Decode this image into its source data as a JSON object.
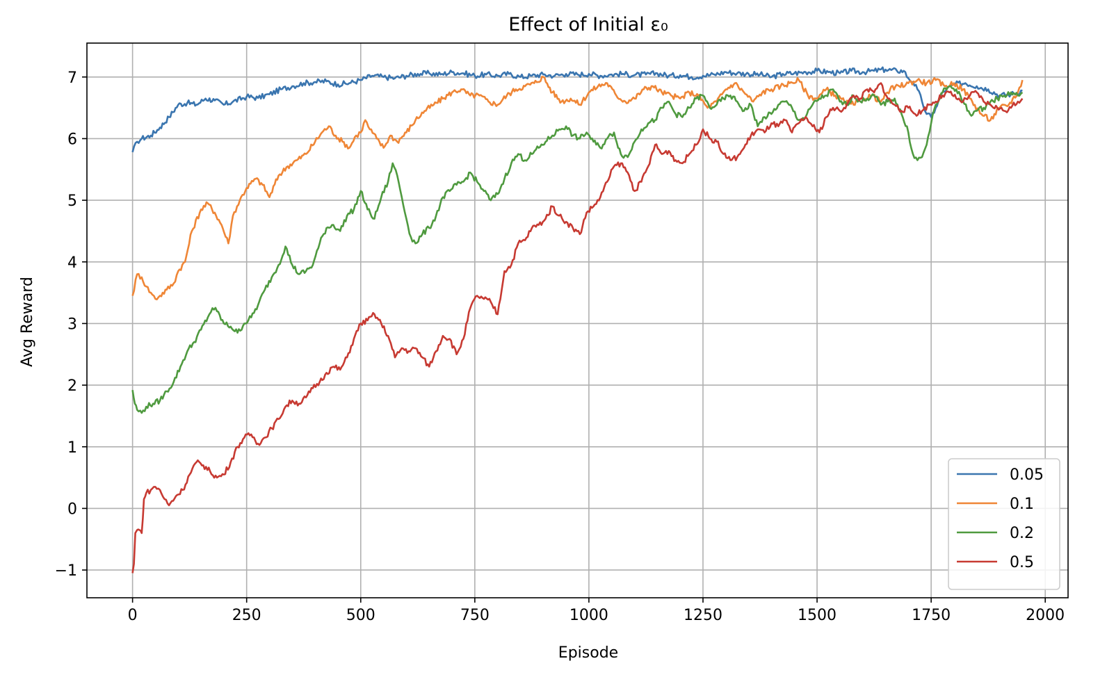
{
  "chart_data": {
    "type": "line",
    "title": "Effect of Initial ε₀",
    "xlabel": "Episode",
    "ylabel": "Avg Reward",
    "xlim": [
      -100,
      2050
    ],
    "ylim": [
      -1.45,
      7.55
    ],
    "xticks": [
      0,
      250,
      500,
      750,
      1000,
      1250,
      1500,
      1750,
      2000
    ],
    "xtick_labels": [
      "0",
      "250",
      "500",
      "750",
      "1000",
      "1250",
      "1500",
      "1750",
      "2000"
    ],
    "yticks": [
      -1,
      0,
      1,
      2,
      3,
      4,
      5,
      6,
      7
    ],
    "ytick_labels": [
      "−1",
      "0",
      "1",
      "2",
      "3",
      "4",
      "5",
      "6",
      "7"
    ],
    "grid": true,
    "legend_position": "lower-right",
    "series": [
      {
        "name": "0.05",
        "color": "#3a75af",
        "x": [
          0,
          10,
          20,
          40,
          60,
          80,
          100,
          120,
          140,
          160,
          180,
          200,
          220,
          250,
          275,
          300,
          325,
          350,
          375,
          400,
          425,
          450,
          475,
          500,
          525,
          550,
          575,
          600,
          625,
          650,
          675,
          700,
          725,
          750,
          775,
          800,
          825,
          850,
          875,
          900,
          925,
          950,
          975,
          1000,
          1025,
          1050,
          1075,
          1100,
          1125,
          1150,
          1175,
          1200,
          1225,
          1250,
          1275,
          1300,
          1325,
          1350,
          1375,
          1400,
          1425,
          1450,
          1475,
          1500,
          1525,
          1550,
          1575,
          1600,
          1625,
          1650,
          1675,
          1690,
          1700,
          1710,
          1720,
          1730,
          1740,
          1750,
          1760,
          1775,
          1800,
          1825,
          1850,
          1875,
          1900,
          1925,
          1950
        ],
        "values": [
          5.78,
          5.95,
          6.0,
          6.05,
          6.18,
          6.35,
          6.55,
          6.58,
          6.55,
          6.65,
          6.62,
          6.55,
          6.6,
          6.68,
          6.66,
          6.72,
          6.8,
          6.85,
          6.9,
          6.92,
          6.93,
          6.88,
          6.9,
          6.95,
          7.02,
          7.0,
          6.98,
          7.02,
          7.05,
          7.06,
          7.04,
          7.08,
          7.06,
          7.02,
          7.04,
          7.02,
          7.05,
          7.0,
          7.02,
          7.04,
          7.02,
          7.05,
          7.04,
          7.05,
          7.02,
          7.04,
          7.05,
          7.03,
          7.04,
          7.06,
          7.02,
          7.03,
          7.0,
          7.02,
          7.04,
          7.08,
          7.06,
          7.05,
          7.04,
          7.0,
          7.05,
          7.06,
          7.08,
          7.1,
          7.08,
          7.06,
          7.1,
          7.08,
          7.1,
          7.12,
          7.1,
          7.1,
          6.98,
          6.92,
          6.8,
          6.6,
          6.4,
          6.35,
          6.5,
          6.75,
          6.88,
          6.9,
          6.85,
          6.8,
          6.7,
          6.72,
          6.78
        ]
      },
      {
        "name": "0.1",
        "color": "#ef8636",
        "x": [
          0,
          10,
          20,
          30,
          40,
          50,
          60,
          75,
          90,
          100,
          115,
          130,
          150,
          165,
          180,
          195,
          210,
          220,
          235,
          250,
          270,
          285,
          300,
          320,
          340,
          360,
          380,
          400,
          415,
          430,
          445,
          460,
          475,
          490,
          500,
          510,
          520,
          535,
          550,
          565,
          580,
          600,
          620,
          640,
          660,
          680,
          700,
          720,
          740,
          760,
          780,
          800,
          820,
          840,
          860,
          880,
          900,
          920,
          940,
          960,
          980,
          1000,
          1020,
          1040,
          1060,
          1080,
          1100,
          1120,
          1140,
          1160,
          1180,
          1200,
          1220,
          1240,
          1260,
          1280,
          1300,
          1320,
          1340,
          1360,
          1380,
          1400,
          1420,
          1440,
          1460,
          1480,
          1500,
          1520,
          1540,
          1560,
          1580,
          1600,
          1620,
          1640,
          1660,
          1680,
          1700,
          1720,
          1740,
          1760,
          1780,
          1800,
          1820,
          1840,
          1860,
          1880,
          1900,
          1920,
          1940,
          1950
        ],
        "values": [
          3.45,
          3.8,
          3.75,
          3.6,
          3.5,
          3.4,
          3.45,
          3.55,
          3.65,
          3.85,
          4.0,
          4.5,
          4.85,
          4.95,
          4.8,
          4.6,
          4.3,
          4.75,
          5.0,
          5.2,
          5.35,
          5.25,
          5.05,
          5.4,
          5.55,
          5.65,
          5.75,
          5.95,
          6.1,
          6.2,
          6.05,
          5.95,
          5.85,
          6.05,
          6.1,
          6.3,
          6.15,
          6.0,
          5.85,
          6.05,
          5.95,
          6.1,
          6.3,
          6.45,
          6.55,
          6.65,
          6.75,
          6.8,
          6.7,
          6.7,
          6.6,
          6.55,
          6.7,
          6.8,
          6.85,
          6.9,
          7.0,
          6.75,
          6.6,
          6.65,
          6.55,
          6.75,
          6.85,
          6.9,
          6.7,
          6.6,
          6.65,
          6.8,
          6.85,
          6.75,
          6.7,
          6.65,
          6.75,
          6.7,
          6.5,
          6.6,
          6.8,
          6.9,
          6.75,
          6.6,
          6.75,
          6.8,
          6.85,
          6.9,
          6.95,
          6.7,
          6.65,
          6.8,
          6.7,
          6.6,
          6.55,
          6.65,
          6.7,
          6.6,
          6.8,
          6.85,
          6.9,
          6.95,
          6.9,
          6.95,
          6.85,
          6.9,
          6.8,
          6.6,
          6.4,
          6.3,
          6.5,
          6.55,
          6.75,
          6.95
        ]
      },
      {
        "name": "0.2",
        "color": "#4f9a3f",
        "x": [
          0,
          5,
          10,
          20,
          30,
          45,
          60,
          75,
          90,
          105,
          120,
          135,
          150,
          165,
          175,
          185,
          200,
          215,
          230,
          245,
          260,
          275,
          290,
          305,
          320,
          335,
          350,
          365,
          380,
          395,
          410,
          425,
          440,
          455,
          470,
          485,
          500,
          515,
          530,
          545,
          560,
          570,
          580,
          590,
          600,
          610,
          620,
          635,
          650,
          665,
          680,
          695,
          710,
          725,
          740,
          755,
          770,
          785,
          800,
          815,
          830,
          845,
          860,
          875,
          890,
          905,
          920,
          935,
          950,
          965,
          980,
          995,
          1010,
          1025,
          1040,
          1055,
          1070,
          1085,
          1100,
          1115,
          1130,
          1145,
          1160,
          1175,
          1190,
          1205,
          1220,
          1235,
          1250,
          1265,
          1280,
          1295,
          1310,
          1325,
          1340,
          1355,
          1370,
          1385,
          1400,
          1415,
          1430,
          1445,
          1460,
          1475,
          1490,
          1505,
          1520,
          1535,
          1550,
          1565,
          1580,
          1595,
          1610,
          1625,
          1640,
          1655,
          1670,
          1685,
          1700,
          1710,
          1720,
          1730,
          1740,
          1750,
          1760,
          1775,
          1790,
          1805,
          1820,
          1835,
          1850,
          1865,
          1880,
          1895,
          1910,
          1925,
          1940,
          1950
        ],
        "values": [
          1.92,
          1.7,
          1.6,
          1.55,
          1.65,
          1.7,
          1.75,
          1.9,
          2.05,
          2.3,
          2.55,
          2.7,
          2.9,
          3.1,
          3.25,
          3.2,
          3.0,
          2.95,
          2.85,
          3.0,
          3.1,
          3.3,
          3.55,
          3.75,
          3.95,
          4.25,
          3.95,
          3.8,
          3.85,
          3.95,
          4.3,
          4.55,
          4.6,
          4.5,
          4.75,
          4.85,
          5.15,
          4.85,
          4.7,
          5.05,
          5.3,
          5.6,
          5.4,
          5.05,
          4.7,
          4.4,
          4.3,
          4.45,
          4.55,
          4.75,
          5.05,
          5.15,
          5.25,
          5.3,
          5.45,
          5.3,
          5.15,
          5.0,
          5.1,
          5.35,
          5.6,
          5.75,
          5.65,
          5.75,
          5.85,
          5.95,
          6.05,
          6.15,
          6.2,
          6.05,
          6.0,
          6.1,
          5.95,
          5.85,
          6.0,
          6.1,
          5.75,
          5.7,
          5.95,
          6.15,
          6.25,
          6.3,
          6.5,
          6.6,
          6.4,
          6.35,
          6.5,
          6.65,
          6.7,
          6.5,
          6.55,
          6.65,
          6.7,
          6.6,
          6.45,
          6.55,
          6.2,
          6.35,
          6.4,
          6.55,
          6.6,
          6.5,
          6.3,
          6.35,
          6.55,
          6.65,
          6.7,
          6.8,
          6.6,
          6.55,
          6.7,
          6.6,
          6.65,
          6.7,
          6.55,
          6.6,
          6.65,
          6.4,
          6.1,
          5.75,
          5.65,
          5.7,
          5.9,
          6.25,
          6.55,
          6.75,
          6.85,
          6.8,
          6.6,
          6.4,
          6.45,
          6.5,
          6.6,
          6.65,
          6.7,
          6.75,
          6.7,
          6.75
        ]
      },
      {
        "name": "0.5",
        "color": "#c73a32",
        "x": [
          0,
          3,
          6,
          10,
          15,
          20,
          25,
          30,
          40,
          50,
          60,
          70,
          80,
          95,
          110,
          125,
          140,
          155,
          170,
          185,
          200,
          215,
          230,
          245,
          260,
          275,
          290,
          305,
          320,
          335,
          350,
          365,
          380,
          395,
          410,
          425,
          440,
          455,
          470,
          485,
          500,
          515,
          530,
          545,
          560,
          575,
          590,
          605,
          620,
          635,
          650,
          665,
          680,
          695,
          710,
          725,
          740,
          755,
          770,
          785,
          800,
          815,
          830,
          845,
          860,
          875,
          890,
          905,
          920,
          935,
          950,
          965,
          980,
          995,
          1010,
          1025,
          1040,
          1055,
          1070,
          1085,
          1100,
          1115,
          1130,
          1145,
          1160,
          1175,
          1190,
          1205,
          1220,
          1235,
          1250,
          1265,
          1280,
          1295,
          1310,
          1325,
          1340,
          1355,
          1370,
          1385,
          1400,
          1415,
          1430,
          1445,
          1460,
          1475,
          1490,
          1505,
          1520,
          1535,
          1550,
          1565,
          1580,
          1595,
          1610,
          1625,
          1640,
          1655,
          1670,
          1685,
          1700,
          1715,
          1730,
          1745,
          1760,
          1775,
          1790,
          1805,
          1820,
          1835,
          1850,
          1865,
          1880,
          1895,
          1910,
          1925,
          1940,
          1950
        ],
        "values": [
          -1.05,
          -0.9,
          -0.4,
          -0.35,
          -0.35,
          -0.4,
          0.15,
          0.25,
          0.3,
          0.35,
          0.3,
          0.15,
          0.05,
          0.2,
          0.3,
          0.55,
          0.75,
          0.7,
          0.6,
          0.5,
          0.55,
          0.75,
          1.0,
          1.15,
          1.2,
          1.05,
          1.15,
          1.3,
          1.45,
          1.65,
          1.75,
          1.7,
          1.8,
          1.95,
          2.05,
          2.2,
          2.3,
          2.25,
          2.45,
          2.75,
          3.0,
          3.05,
          3.15,
          3.0,
          2.8,
          2.45,
          2.6,
          2.55,
          2.6,
          2.45,
          2.3,
          2.55,
          2.8,
          2.75,
          2.5,
          2.75,
          3.25,
          3.45,
          3.4,
          3.35,
          3.15,
          3.85,
          3.95,
          4.3,
          4.35,
          4.55,
          4.6,
          4.7,
          4.9,
          4.75,
          4.65,
          4.55,
          4.45,
          4.8,
          4.9,
          5.05,
          5.3,
          5.55,
          5.6,
          5.45,
          5.15,
          5.3,
          5.55,
          5.9,
          5.75,
          5.8,
          5.65,
          5.6,
          5.75,
          5.9,
          6.15,
          6.0,
          5.95,
          5.75,
          5.65,
          5.7,
          5.85,
          6.05,
          6.15,
          6.1,
          6.25,
          6.2,
          6.3,
          6.1,
          6.25,
          6.35,
          6.2,
          6.1,
          6.35,
          6.5,
          6.45,
          6.55,
          6.7,
          6.65,
          6.8,
          6.75,
          6.9,
          6.65,
          6.55,
          6.45,
          6.5,
          6.4,
          6.45,
          6.55,
          6.6,
          6.7,
          6.75,
          6.65,
          6.6,
          6.7,
          6.75,
          6.6,
          6.55,
          6.5,
          6.45,
          6.5,
          6.6,
          6.65
        ]
      }
    ]
  }
}
